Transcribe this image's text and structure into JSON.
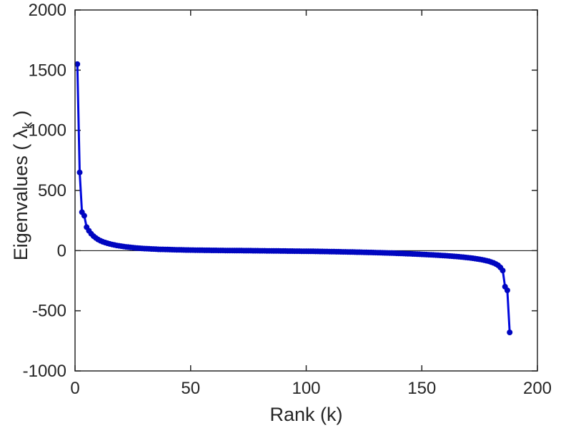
{
  "chart_data": {
    "type": "line",
    "title": "",
    "xlabel": "Rank (k)",
    "ylabel": "Eigenvalues ( λk )",
    "ylabel_parts": {
      "prefix": "Eigenvalues ( ",
      "symbol": "λ",
      "subscript": "k",
      "suffix": " )"
    },
    "xlim": [
      0,
      200
    ],
    "ylim": [
      -1000,
      2000
    ],
    "x_ticks": [
      0,
      50,
      100,
      150,
      200
    ],
    "y_ticks": [
      -1000,
      -500,
      0,
      500,
      1000,
      1500,
      2000
    ],
    "grid": false,
    "zero_line": true,
    "box": true,
    "legend": "none",
    "line_color": "#0008dd",
    "marker_color": "#0006c0",
    "axis_color": "#262626",
    "series": [
      {
        "name": "eigenvalues",
        "x_start": 1,
        "values": [
          1550,
          650,
          320,
          290,
          195,
          165,
          140,
          120,
          105,
          92,
          82,
          74,
          67,
          61,
          56,
          51,
          47,
          43,
          40,
          37,
          34,
          31,
          29,
          27,
          25,
          23,
          21,
          20,
          18,
          17,
          16,
          15,
          14,
          13,
          12,
          11,
          10.5,
          10,
          9.5,
          9,
          8.5,
          8,
          7.5,
          7,
          6.5,
          6,
          5.6,
          5.2,
          4.8,
          4.5,
          4.2,
          3.9,
          3.6,
          3.3,
          3,
          2.8,
          2.6,
          2.4,
          2.2,
          2,
          1.8,
          1.6,
          1.4,
          1.2,
          1,
          0.8,
          0.6,
          0.5,
          0.3,
          0.2,
          0.1,
          0,
          -0.1,
          -0.3,
          -0.4,
          -0.6,
          -0.8,
          -1,
          -1.2,
          -1.4,
          -1.6,
          -1.8,
          -2,
          -2.2,
          -2.4,
          -2.6,
          -2.8,
          -3,
          -3.2,
          -3.4,
          -3.6,
          -3.8,
          -4,
          -4.2,
          -4.4,
          -4.6,
          -4.8,
          -5,
          -5.2,
          -5.4,
          -5.6,
          -5.8,
          -6,
          -6.3,
          -6.6,
          -6.9,
          -7.2,
          -7.5,
          -7.8,
          -8.1,
          -8.4,
          -8.7,
          -9,
          -9.4,
          -9.8,
          -10.2,
          -10.6,
          -11,
          -11.4,
          -11.8,
          -12.2,
          -12.6,
          -13,
          -13.5,
          -14,
          -14.5,
          -15,
          -15.5,
          -16,
          -16.5,
          -17,
          -17.6,
          -18.2,
          -18.8,
          -19.4,
          -20,
          -20.7,
          -21.4,
          -22.1,
          -22.8,
          -23.5,
          -24.3,
          -25.1,
          -25.9,
          -26.7,
          -27.5,
          -28.4,
          -29.3,
          -30.2,
          -31.1,
          -32,
          -33,
          -34,
          -35,
          -36.1,
          -37.2,
          -38.3,
          -39.5,
          -40.7,
          -42,
          -43.3,
          -44.7,
          -46.1,
          -47.6,
          -49.2,
          -50.9,
          -52.7,
          -54.6,
          -56.6,
          -58.7,
          -61,
          -63.5,
          -66.2,
          -69.1,
          -72.3,
          -75.8,
          -79.7,
          -84,
          -89,
          -95,
          -102,
          -111,
          -122,
          -140,
          -165,
          -300,
          -330,
          -680
        ]
      }
    ]
  }
}
